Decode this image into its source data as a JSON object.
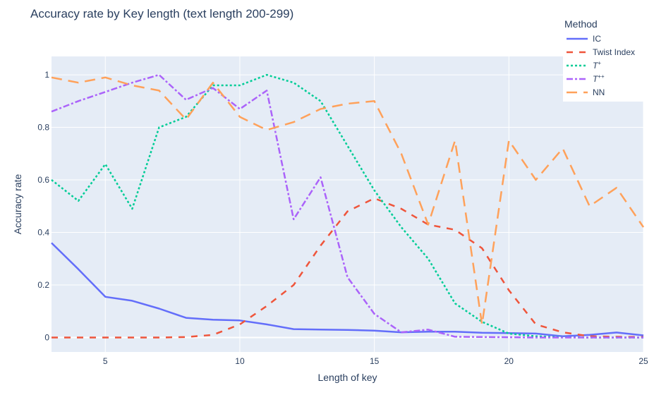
{
  "chart_data": {
    "type": "line",
    "title": "Accuracy rate by Key length (text length 200-299)",
    "xlabel": "Length of key",
    "ylabel": "Accuracy rate",
    "xlim": [
      3,
      25
    ],
    "ylim": [
      -0.055,
      1.07
    ],
    "xticks": [
      5,
      10,
      15,
      20,
      25
    ],
    "yticks": [
      0,
      0.2,
      0.4,
      0.6,
      0.8,
      1
    ],
    "ytick_labels": [
      "0",
      "0.2",
      "0.4",
      "0.6",
      "0.8",
      "1"
    ],
    "x": [
      3,
      4,
      5,
      6,
      7,
      8,
      9,
      10,
      11,
      12,
      13,
      14,
      15,
      16,
      17,
      18,
      19,
      20,
      21,
      22,
      23,
      24,
      25
    ],
    "legend": {
      "title": "Method",
      "placement": "top-right"
    },
    "series": [
      {
        "name": "IC",
        "base": "IC",
        "sup": "",
        "color": "#636efa",
        "dash": "solid",
        "values": [
          0.36,
          0.26,
          0.155,
          0.14,
          0.11,
          0.075,
          0.068,
          0.065,
          0.05,
          0.032,
          0.03,
          0.029,
          0.026,
          0.02,
          0.022,
          0.022,
          0.018,
          0.017,
          0.015,
          0.005,
          0.01,
          0.019,
          0.008
        ]
      },
      {
        "name": "Twist Index",
        "base": "Twist Index",
        "sup": "",
        "color": "#ef553b",
        "dash": "dash",
        "values": [
          0.0,
          0.0,
          0.0,
          0.0,
          0.0,
          0.002,
          0.01,
          0.05,
          0.12,
          0.2,
          0.35,
          0.48,
          0.53,
          0.49,
          0.43,
          0.41,
          0.34,
          0.18,
          0.05,
          0.02,
          0.005,
          0.003,
          0.002
        ]
      },
      {
        "name": "T+",
        "base": "T",
        "sup": "+",
        "color": "#00cc96",
        "dash": "dot",
        "values": [
          0.6,
          0.52,
          0.66,
          0.49,
          0.8,
          0.84,
          0.96,
          0.96,
          1.0,
          0.97,
          0.9,
          0.73,
          0.56,
          0.42,
          0.3,
          0.13,
          0.06,
          0.015,
          0.005,
          0.001,
          0.0,
          0.0,
          0.0
        ]
      },
      {
        "name": "T++",
        "base": "T",
        "sup": "++",
        "color": "#ab63fa",
        "dash": "dashdot",
        "values": [
          0.86,
          0.9,
          0.935,
          0.97,
          1.0,
          0.905,
          0.95,
          0.87,
          0.94,
          0.45,
          0.61,
          0.23,
          0.09,
          0.02,
          0.03,
          0.003,
          0.002,
          0.001,
          0.0,
          0.0,
          0.0,
          0.0,
          0.0
        ]
      },
      {
        "name": "NN",
        "base": "NN",
        "sup": "",
        "color": "#ffa15a",
        "dash": "longdash",
        "values": [
          0.99,
          0.97,
          0.99,
          0.96,
          0.94,
          0.83,
          0.97,
          0.84,
          0.79,
          0.82,
          0.87,
          0.89,
          0.9,
          0.7,
          0.43,
          0.75,
          0.05,
          0.75,
          0.6,
          0.72,
          0.5,
          0.57,
          0.42
        ]
      }
    ]
  }
}
